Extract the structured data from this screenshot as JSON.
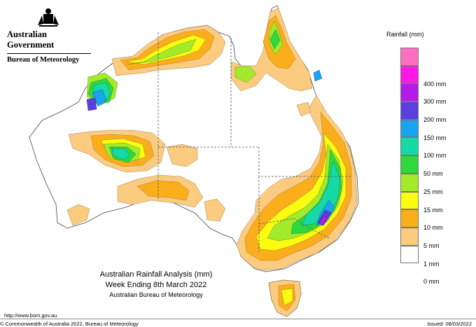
{
  "header": {
    "government": "Australian Government",
    "agency": "Bureau of Meteorology"
  },
  "legend": {
    "title": "Rainfall (mm)",
    "items": [
      {
        "label": "",
        "color": "#ff6fbf"
      },
      {
        "label": "400 mm",
        "color": "#ff17e8"
      },
      {
        "label": "300 mm",
        "color": "#b21be8"
      },
      {
        "label": "200 mm",
        "color": "#5a3ee0"
      },
      {
        "label": "150 mm",
        "color": "#1aa3ef"
      },
      {
        "label": "100 mm",
        "color": "#15d9a6"
      },
      {
        "label": "50 mm",
        "color": "#2fd83c"
      },
      {
        "label": "25 mm",
        "color": "#a3ea2b"
      },
      {
        "label": "15 mm",
        "color": "#fafd10"
      },
      {
        "label": "10 mm",
        "color": "#fbae1c"
      },
      {
        "label": "5 mm",
        "color": "#fbcb80"
      },
      {
        "label": "1 mm",
        "color": "#ffffff"
      },
      {
        "label": "0 mm",
        "color": ""
      }
    ]
  },
  "title": {
    "line1": "Australian Rainfall Analysis (mm)",
    "line2": "Week Ending 8th March 2022",
    "line3": "Australian Bureau of Meteorology"
  },
  "footer": {
    "url": "http://www.bom.gov.au",
    "copyright": "© Commonwealth of Australia 2022, Bureau of Meteorology",
    "issued": "Issued: 08/03/2022"
  }
}
